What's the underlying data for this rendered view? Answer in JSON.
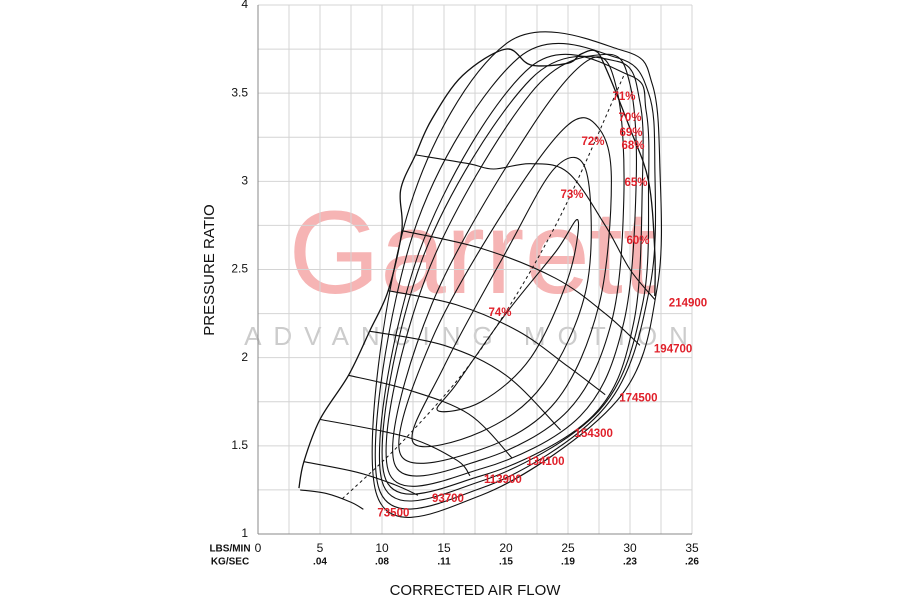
{
  "chart_data": {
    "type": "compressor-map",
    "watermark": "Garrett",
    "watermark_subtitle": "ADVANCING MOTION",
    "ylabel": "PRESSURE RATIO",
    "xlabel": "CORRECTED AIR FLOW",
    "xunit_primary": "LBS/MIN",
    "xunit_secondary": "KG/SEC",
    "xlim": [
      0,
      35
    ],
    "ylim": [
      1,
      4
    ],
    "xticks": [
      0,
      5,
      10,
      15,
      20,
      25,
      30,
      35
    ],
    "xticks_secondary": [
      null,
      ".04",
      ".08",
      ".11",
      ".15",
      ".19",
      ".23",
      ".26"
    ],
    "yticks": [
      1,
      1.5,
      2,
      2.5,
      3,
      3.5,
      4
    ],
    "xgrid": [
      0,
      2.5,
      5,
      7.5,
      10,
      12.5,
      15,
      17.5,
      20,
      22.5,
      25,
      27.5,
      30,
      32.5,
      35
    ],
    "ygrid": [
      1,
      1.25,
      1.5,
      1.75,
      2,
      2.25,
      2.5,
      2.75,
      3,
      3.25,
      3.5,
      3.75,
      4
    ],
    "line_color": "#111111",
    "label_color": "#e0202a",
    "surge_line": {
      "x": [
        3.3,
        3.7,
        5,
        7.3,
        9,
        10.5,
        11.6,
        11.5,
        12.7,
        14,
        16.5,
        20,
        22,
        25,
        26,
        27.2,
        28,
        30,
        31.5,
        32,
        32
      ],
      "y": [
        1.26,
        1.41,
        1.65,
        1.9,
        2.15,
        2.38,
        2.72,
        2.95,
        3.15,
        3.35,
        3.6,
        3.75,
        3.66,
        3.67,
        3.72,
        3.74,
        3.65,
        3.3,
        3.0,
        2.6,
        2.35
      ]
    },
    "peak_efficiency_line": {
      "x": [
        6.8,
        12,
        18,
        24,
        29.5
      ],
      "y": [
        1.2,
        1.55,
        2.05,
        2.75,
        3.6
      ]
    },
    "speed_lines": [
      {
        "speed": 73500,
        "x": [
          3.4,
          5.5,
          7.5,
          8.5
        ],
        "y": [
          1.25,
          1.23,
          1.18,
          1.14
        ]
      },
      {
        "speed": 93700,
        "x": [
          3.7,
          8,
          11,
          12.9
        ],
        "y": [
          1.41,
          1.35,
          1.28,
          1.22
        ]
      },
      {
        "speed": 113900,
        "x": [
          5,
          12,
          16,
          17.1
        ],
        "y": [
          1.65,
          1.55,
          1.42,
          1.33
        ]
      },
      {
        "speed": 134100,
        "x": [
          7.3,
          12,
          17,
          20.5
        ],
        "y": [
          1.9,
          1.82,
          1.68,
          1.43
        ]
      },
      {
        "speed": 154300,
        "x": [
          9,
          15,
          20,
          24.4
        ],
        "y": [
          2.15,
          2.07,
          1.9,
          1.59
        ]
      },
      {
        "speed": 174500,
        "x": [
          10.5,
          16,
          21,
          25,
          28
        ],
        "y": [
          2.38,
          2.3,
          2.15,
          1.95,
          1.79
        ]
      },
      {
        "speed": 194700,
        "x": [
          11.6,
          18,
          24,
          28,
          30.8
        ],
        "y": [
          2.72,
          2.62,
          2.45,
          2.25,
          2.07
        ]
      },
      {
        "speed": 214900,
        "x": [
          12.7,
          17,
          19,
          22,
          25,
          28,
          30,
          32
        ],
        "y": [
          3.15,
          3.1,
          3.07,
          3.1,
          3.05,
          2.75,
          2.5,
          2.33
        ]
      }
    ],
    "efficiency_islands": [
      {
        "label": "74%",
        "x": [
          14.5,
          18,
          22,
          25,
          25.8,
          24,
          20,
          16
        ],
        "y": [
          1.7,
          1.75,
          2.0,
          2.45,
          2.78,
          2.6,
          2.25,
          1.85
        ]
      },
      {
        "label": "73%",
        "x": [
          12.5,
          18,
          23,
          26.5,
          26.5,
          24,
          20,
          15
        ],
        "y": [
          1.52,
          1.58,
          1.85,
          2.4,
          3.05,
          3.08,
          2.6,
          1.95
        ]
      },
      {
        "label": "72%",
        "x": [
          11.5,
          18,
          24,
          27.5,
          28.5,
          27.5,
          25,
          20,
          14
        ],
        "y": [
          1.45,
          1.48,
          1.75,
          2.3,
          3.0,
          3.3,
          3.32,
          2.85,
          2.1
        ]
      },
      {
        "label": "71%",
        "x": [
          11,
          18,
          25,
          28.5,
          29.5,
          29,
          27,
          22,
          14
        ],
        "y": [
          1.4,
          1.42,
          1.7,
          2.2,
          2.9,
          3.5,
          3.7,
          3.3,
          2.3
        ]
      },
      {
        "label": "70%",
        "x": [
          10.5,
          18,
          26,
          29.5,
          30.5,
          30,
          28,
          22,
          13.5
        ],
        "y": [
          1.36,
          1.37,
          1.67,
          2.2,
          3.0,
          3.55,
          3.72,
          3.5,
          2.45
        ]
      },
      {
        "label": "69%",
        "x": [
          10.2,
          18,
          27,
          30.3,
          31,
          30.8,
          29,
          22,
          13.2
        ],
        "y": [
          1.33,
          1.33,
          1.67,
          2.2,
          3.0,
          3.45,
          3.68,
          3.58,
          2.55
        ]
      },
      {
        "label": "68%",
        "x": [
          10,
          18,
          27.5,
          31,
          31.5,
          31.3,
          30,
          22,
          13
        ],
        "y": [
          1.3,
          1.3,
          1.7,
          2.3,
          3.0,
          3.4,
          3.6,
          3.65,
          2.6
        ]
      },
      {
        "label": "65%",
        "x": [
          9.7,
          18,
          28,
          31.6,
          32,
          31.5,
          29,
          21,
          12.5
        ],
        "y": [
          1.27,
          1.26,
          1.72,
          2.4,
          3.1,
          3.5,
          3.7,
          3.7,
          2.7
        ]
      },
      {
        "label": "60%",
        "x": [
          9.5,
          18,
          29,
          32.2,
          32.4,
          31.8,
          29.5,
          20,
          12
        ],
        "y": [
          1.24,
          1.22,
          1.76,
          2.4,
          3.1,
          3.55,
          3.74,
          3.78,
          2.8
        ]
      }
    ]
  }
}
